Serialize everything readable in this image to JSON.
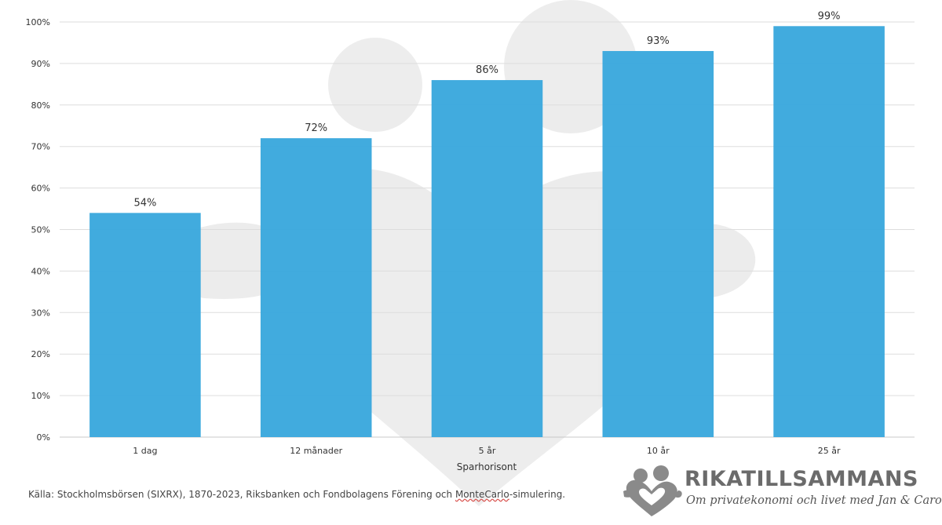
{
  "chart_data": {
    "type": "bar",
    "categories": [
      "1 dag",
      "12 månader",
      "5 år",
      "10 år",
      "25 år"
    ],
    "values": [
      54,
      72,
      86,
      93,
      99
    ],
    "data_labels": [
      "54%",
      "72%",
      "86%",
      "93%",
      "99%"
    ],
    "ylim": [
      0,
      100
    ],
    "yticks": [
      "0%",
      "10%",
      "20%",
      "30%",
      "40%",
      "50%",
      "60%",
      "70%",
      "80%",
      "90%",
      "100%"
    ],
    "xlabel": "Sparhorisont",
    "bar_color": "#3ba8dd",
    "grid": true
  },
  "source": {
    "prefix": "Källa: Stockholmsbörsen (SIXRX), 1870-2023, Riksbanken och Fondbolagens Förening och ",
    "underlined": "MonteCarlo",
    "suffix": "-simulering."
  },
  "logo": {
    "name": "RIKATILLSAMMANS",
    "tagline": "Om privatekonomi och livet med Jan & Caroline"
  }
}
